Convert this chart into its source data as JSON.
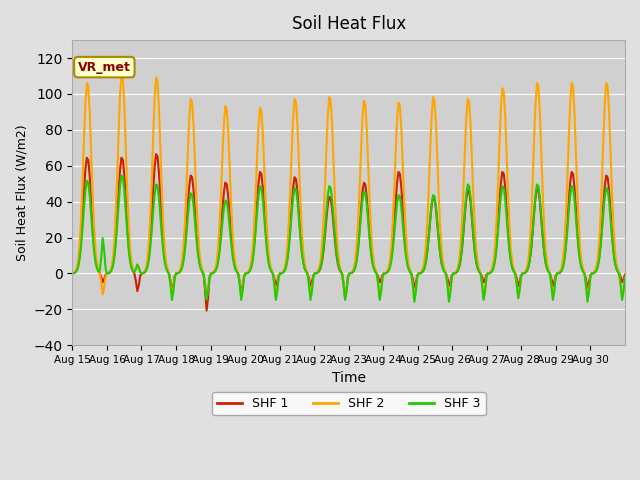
{
  "title": "Soil Heat Flux",
  "xlabel": "Time",
  "ylabel": "Soil Heat Flux (W/m2)",
  "ylim": [
    -40,
    130
  ],
  "yticks": [
    -40,
    -20,
    0,
    20,
    40,
    60,
    80,
    100,
    120
  ],
  "fig_bg_color": "#e0e0e0",
  "plot_bg_color": "#d0d0d0",
  "legend_labels": [
    "SHF 1",
    "SHF 2",
    "SHF 3"
  ],
  "legend_colors": [
    "#cc2200",
    "#ffa500",
    "#22cc00"
  ],
  "vr_met_label": "VR_met",
  "x_tick_labels": [
    "Aug 15",
    "Aug 16",
    "Aug 17",
    "Aug 18",
    "Aug 19",
    "Aug 20",
    "Aug 21",
    "Aug 22",
    "Aug 23",
    "Aug 24",
    "Aug 25",
    "Aug 26",
    "Aug 27",
    "Aug 28",
    "Aug 29",
    "Aug 30"
  ],
  "n_days": 16,
  "pts_per_day": 24,
  "shf1_peaks": [
    65,
    65,
    67,
    55,
    51,
    57,
    54,
    43,
    51,
    57,
    43,
    47,
    57,
    48,
    57,
    55
  ],
  "shf1_troughs": [
    -5,
    -10,
    -10,
    -21,
    -11,
    -7,
    -7,
    -14,
    -5,
    -8,
    -7,
    -5,
    -7,
    -7,
    -8,
    -5
  ],
  "shf2_peaks": [
    107,
    112,
    110,
    98,
    94,
    93,
    98,
    99,
    97,
    96,
    99,
    98,
    104,
    107,
    107,
    107
  ],
  "shf2_troughs": [
    -12,
    5,
    -12,
    -14,
    -13,
    -13,
    -13,
    -14,
    -14,
    -14,
    -13,
    -14,
    -14,
    -14,
    -14,
    -14
  ],
  "shf3_peaks": [
    52,
    55,
    50,
    45,
    41,
    49,
    48,
    49,
    46,
    44,
    44,
    50,
    49,
    50,
    49,
    48
  ],
  "shf3_troughs": [
    20,
    5,
    -15,
    -15,
    -15,
    -15,
    -15,
    -15,
    -15,
    -16,
    -16,
    -15,
    -14,
    -15,
    -16,
    -15
  ],
  "line_width": 1.5
}
